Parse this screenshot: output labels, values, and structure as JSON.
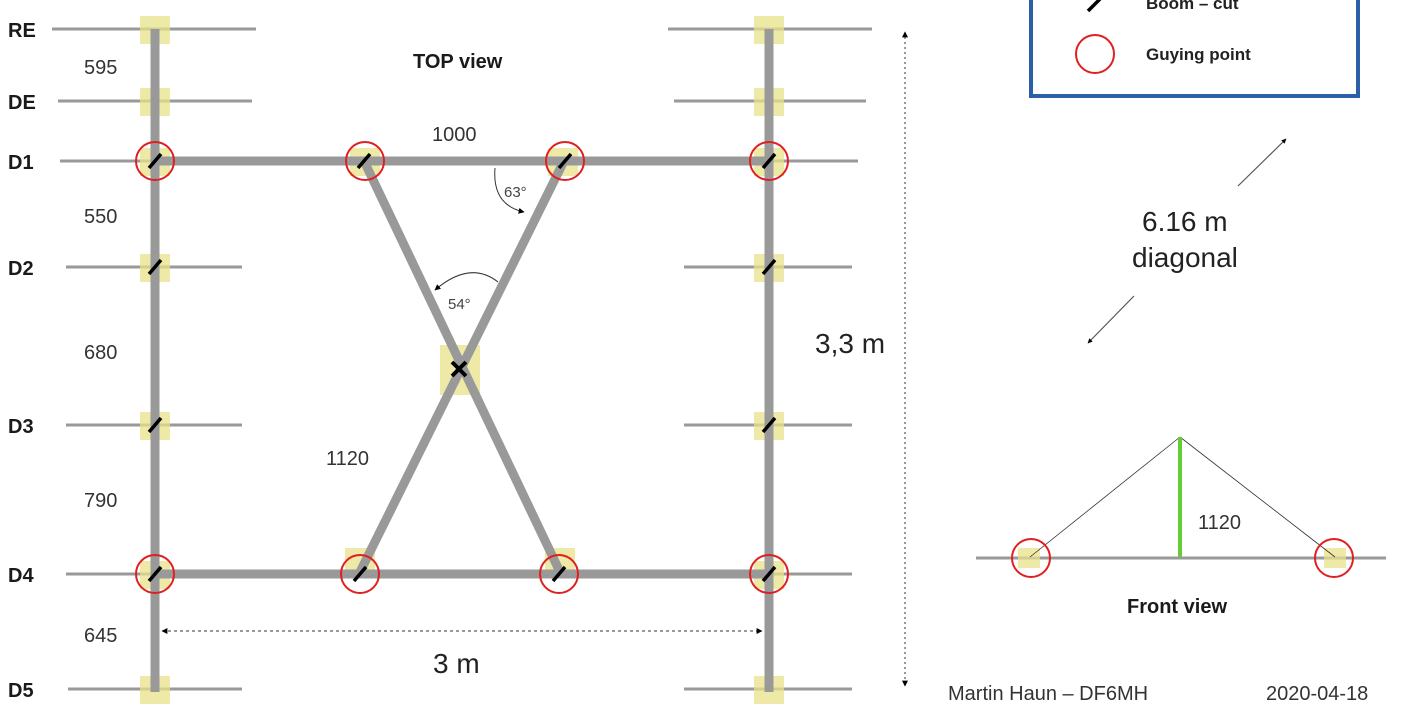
{
  "diagram": {
    "element_labels": [
      "RE",
      "DE",
      "D1",
      "D2",
      "D3",
      "D4",
      "D5"
    ],
    "spacings": [
      "595",
      "550",
      "680",
      "790",
      "645"
    ],
    "top_view_title": "TOP view",
    "cross_length_top": "1000",
    "angle_top": "63°",
    "angle_mid": "54°",
    "cross_length_side": "1120",
    "height_dimension": "3,3 m",
    "width_dimension": "3 m",
    "diagonal_value": "6.16 m",
    "diagonal_label": "diagonal",
    "legend": {
      "items": [
        {
          "label": "Boom – cut",
          "icon": "boom-cut-icon"
        },
        {
          "label": "Guying point",
          "icon": "guying-point-icon"
        }
      ]
    },
    "front_view": {
      "title": "Front view",
      "height": "1120"
    },
    "author": "Martin Haun – DF6MH",
    "date": "2020-04-18"
  },
  "colors": {
    "boom": "#999999",
    "element": "#999999",
    "highlight": "#e8e28a",
    "guying": "#e02020",
    "legend_border": "#2b5fa8",
    "mast": "#66cc33",
    "cut_mark": "#000000"
  }
}
